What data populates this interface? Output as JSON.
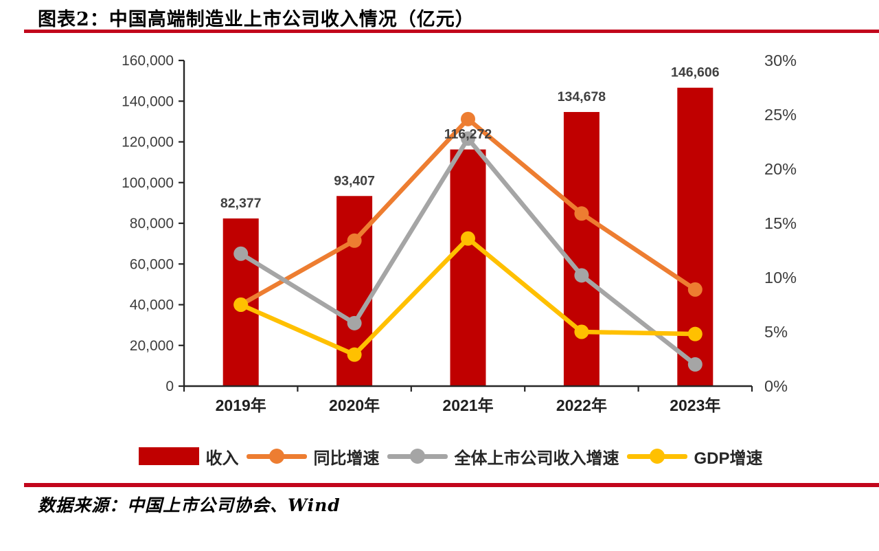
{
  "page": {
    "title": "图表2：中国高端制造业上市公司收入情况（亿元）",
    "source": "数据来源：中国上市公司协会、Wind",
    "divider_color": "#C2061C"
  },
  "chart_data": {
    "type": "bar+line combo, dual axis",
    "title": "中国高端制造业上市公司收入情况（亿元）",
    "categories": [
      "2019年",
      "2020年",
      "2021年",
      "2022年",
      "2023年"
    ],
    "bar_series": {
      "name": "收入",
      "color": "#C00000",
      "axis": "left",
      "values": [
        82377,
        93407,
        116272,
        134678,
        146606
      ],
      "data_labels": [
        "82,377",
        "93,407",
        "116,272",
        "134,678",
        "146,606"
      ]
    },
    "line_series": [
      {
        "name": "同比增速",
        "color": "#ED7D31",
        "axis": "right",
        "values_pct": [
          7.5,
          13.4,
          24.6,
          15.9,
          8.9
        ]
      },
      {
        "name": "全体上市公司收入增速",
        "color": "#A5A5A5",
        "axis": "right",
        "values_pct": [
          12.2,
          5.8,
          22.8,
          10.2,
          2.0
        ]
      },
      {
        "name": "GDP增速",
        "color": "#FFC000",
        "axis": "right",
        "values_pct": [
          7.5,
          2.9,
          13.6,
          5.0,
          4.8
        ]
      }
    ],
    "left_axis": {
      "min": 0,
      "max": 160000,
      "step": 20000,
      "tick_labels": [
        "0",
        "20,000",
        "40,000",
        "60,000",
        "80,000",
        "100,000",
        "120,000",
        "140,000",
        "160,000"
      ]
    },
    "right_axis": {
      "min": 0,
      "max": 30,
      "step": 5,
      "tick_labels": [
        "0%",
        "5%",
        "10%",
        "15%",
        "20%",
        "25%",
        "30%"
      ]
    },
    "legend": [
      "收入",
      "同比增速",
      "全体上市公司收入增速",
      "GDP增速"
    ],
    "legend_position": "bottom",
    "grid": false,
    "axis_color": "#262626",
    "tick_label_color": "#3d3d3d",
    "data_label_color": "#404040"
  }
}
